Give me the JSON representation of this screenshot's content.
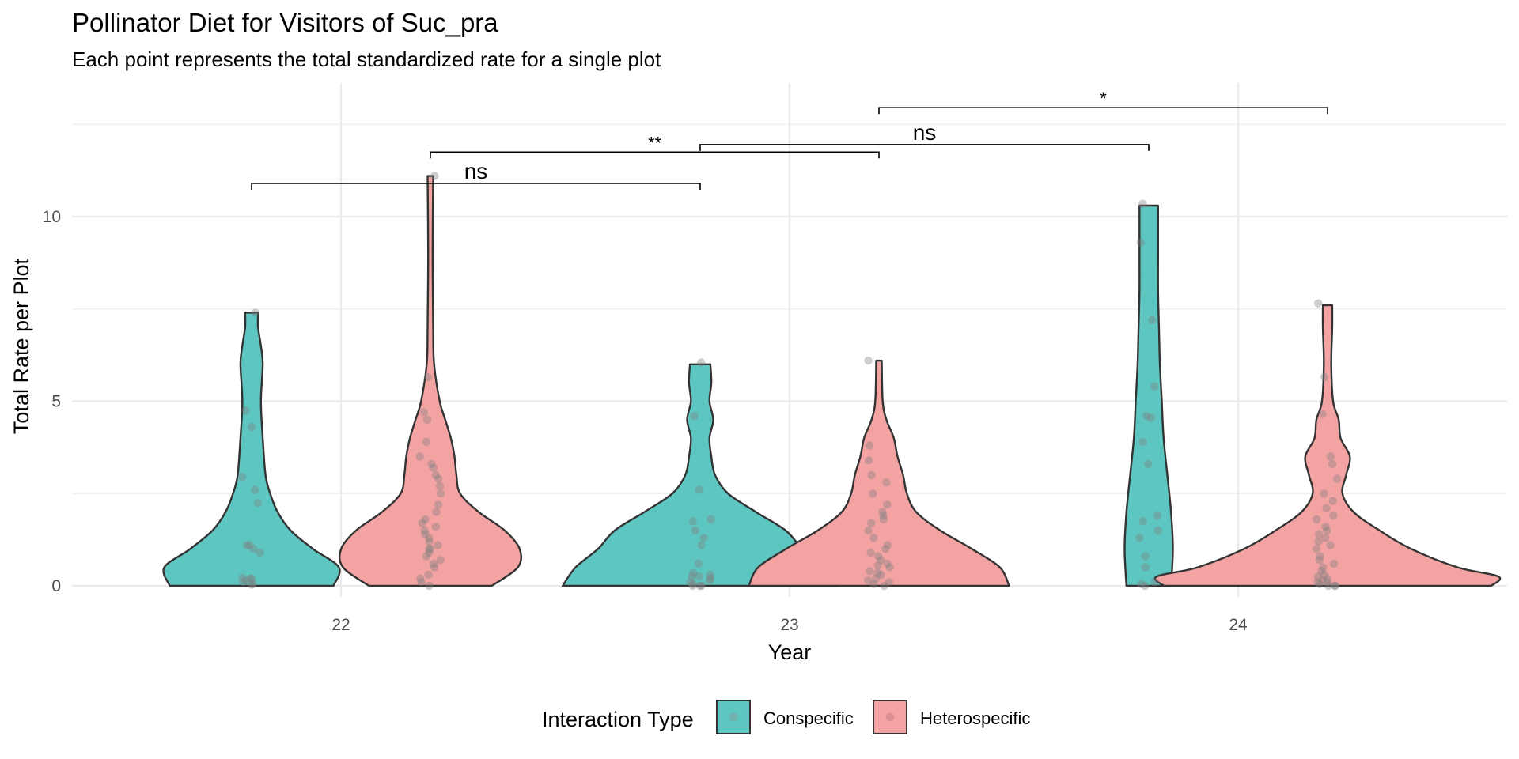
{
  "chart_data": {
    "type": "violin",
    "title": "Pollinator Diet for Visitors of Suc_pra",
    "subtitle": "Each point represents the total standardized rate for a single plot",
    "xlabel": "Year",
    "ylabel": "Total Rate per Plot",
    "categories": [
      "22",
      "23",
      "24"
    ],
    "yticks": [
      0,
      5,
      10
    ],
    "ylim": [
      -0.5,
      12.9
    ],
    "grid": true,
    "legend": {
      "title": "Interaction Type",
      "placement": "bottom",
      "entries": [
        {
          "label": "Conspecific",
          "color": "#5ec6c1"
        },
        {
          "label": "Heterospecific",
          "color": "#f4a3a3"
        }
      ]
    },
    "series": [
      {
        "name": "Conspecific",
        "color": "#5ec6c1",
        "groups": [
          {
            "x": "22",
            "max": 7.4,
            "profile": [
              [
                0,
                0.44
              ],
              [
                0.5,
                0.47
              ],
              [
                1.0,
                0.33
              ],
              [
                1.5,
                0.21
              ],
              [
                2.0,
                0.14
              ],
              [
                2.5,
                0.1
              ],
              [
                3.0,
                0.075
              ],
              [
                4.0,
                0.06
              ],
              [
                5.0,
                0.05
              ],
              [
                6.0,
                0.06
              ],
              [
                6.5,
                0.05
              ],
              [
                7.0,
                0.035
              ],
              [
                7.4,
                0.035
              ]
            ],
            "points": [
              0.03,
              0.05,
              0.1,
              0.15,
              0.2,
              0.2,
              0.22,
              0.9,
              1.0,
              1.1,
              1.1,
              2.25,
              2.6,
              2.95,
              4.3,
              4.75,
              7.4
            ]
          },
          {
            "x": "23",
            "max": 6.0,
            "profile": [
              [
                0,
                0.74
              ],
              [
                0.5,
                0.67
              ],
              [
                1.0,
                0.55
              ],
              [
                1.5,
                0.46
              ],
              [
                2.0,
                0.3
              ],
              [
                2.5,
                0.15
              ],
              [
                3.0,
                0.08
              ],
              [
                3.5,
                0.06
              ],
              [
                4.0,
                0.05
              ],
              [
                4.5,
                0.07
              ],
              [
                5.0,
                0.05
              ],
              [
                5.5,
                0.06
              ],
              [
                6.0,
                0.055
              ]
            ],
            "points": [
              0,
              0,
              0,
              0.05,
              0.1,
              0.15,
              0.2,
              0.25,
              0.25,
              0.3,
              0.35,
              0.6,
              1.1,
              1.3,
              1.5,
              1.75,
              1.8,
              2.6,
              4.6,
              6.05
            ]
          },
          {
            "x": "24",
            "max": 10.3,
            "profile": [
              [
                0,
                0.12
              ],
              [
                1.0,
                0.13
              ],
              [
                2.0,
                0.12
              ],
              [
                3.0,
                0.1
              ],
              [
                4.0,
                0.08
              ],
              [
                5.0,
                0.07
              ],
              [
                6.0,
                0.06
              ],
              [
                7.0,
                0.055
              ],
              [
                8.0,
                0.05
              ],
              [
                9.0,
                0.05
              ],
              [
                10.3,
                0.05
              ]
            ],
            "points": [
              0,
              0.05,
              0.1,
              0.5,
              0.8,
              1.3,
              1.5,
              1.75,
              1.9,
              3.3,
              3.9,
              4.55,
              4.6,
              5.4,
              7.2,
              9.3,
              10.35
            ]
          }
        ]
      },
      {
        "name": "Heterospecific",
        "color": "#f4a3a3",
        "groups": [
          {
            "x": "22",
            "max": 11.1,
            "profile": [
              [
                0,
                0.33
              ],
              [
                0.5,
                0.47
              ],
              [
                1.0,
                0.48
              ],
              [
                1.5,
                0.4
              ],
              [
                2.0,
                0.26
              ],
              [
                2.5,
                0.16
              ],
              [
                3.0,
                0.14
              ],
              [
                3.5,
                0.13
              ],
              [
                4.0,
                0.11
              ],
              [
                4.5,
                0.08
              ],
              [
                5.0,
                0.05
              ],
              [
                6.0,
                0.02
              ],
              [
                7.0,
                0.015
              ],
              [
                9.0,
                0.012
              ],
              [
                11.1,
                0.015
              ]
            ],
            "points": [
              0,
              0.1,
              0.2,
              0.3,
              0.5,
              0.6,
              0.7,
              0.8,
              0.9,
              1.0,
              1.0,
              1.1,
              1.2,
              1.3,
              1.4,
              1.5,
              1.6,
              1.7,
              1.8,
              2.0,
              2.2,
              2.5,
              2.7,
              2.9,
              3.0,
              3.2,
              3.3,
              3.5,
              3.9,
              4.5,
              4.7,
              5.65,
              11.1
            ]
          },
          {
            "x": "23",
            "max": 6.1,
            "profile": [
              [
                0,
                0.7
              ],
              [
                0.5,
                0.65
              ],
              [
                1.0,
                0.5
              ],
              [
                1.5,
                0.33
              ],
              [
                2.0,
                0.2
              ],
              [
                2.5,
                0.15
              ],
              [
                3.0,
                0.13
              ],
              [
                3.5,
                0.1
              ],
              [
                4.0,
                0.08
              ],
              [
                4.5,
                0.04
              ],
              [
                5.0,
                0.02
              ],
              [
                6.1,
                0.015
              ]
            ],
            "points": [
              0,
              0.05,
              0.1,
              0.15,
              0.2,
              0.3,
              0.35,
              0.4,
              0.5,
              0.55,
              0.6,
              0.7,
              0.8,
              0.9,
              1.0,
              1.1,
              1.3,
              1.5,
              1.7,
              1.8,
              1.9,
              2.0,
              2.2,
              2.5,
              2.8,
              3.0,
              3.4,
              3.8,
              6.1
            ]
          },
          {
            "x": "24",
            "max": 7.6,
            "profile": [
              [
                0,
                0.88
              ],
              [
                0.25,
                0.92
              ],
              [
                0.5,
                0.7
              ],
              [
                1.0,
                0.45
              ],
              [
                1.5,
                0.28
              ],
              [
                2.0,
                0.14
              ],
              [
                2.5,
                0.08
              ],
              [
                3.0,
                0.1
              ],
              [
                3.5,
                0.12
              ],
              [
                4.0,
                0.07
              ],
              [
                4.5,
                0.06
              ],
              [
                5.0,
                0.03
              ],
              [
                6.0,
                0.02
              ],
              [
                7.0,
                0.025
              ],
              [
                7.6,
                0.025
              ]
            ],
            "points": [
              0,
              0,
              0,
              0.05,
              0.1,
              0.1,
              0.15,
              0.2,
              0.25,
              0.3,
              0.4,
              0.5,
              0.6,
              0.7,
              0.8,
              1.0,
              1.1,
              1.2,
              1.3,
              1.4,
              1.5,
              1.6,
              1.8,
              1.9,
              2.1,
              2.3,
              2.5,
              2.9,
              3.3,
              3.5,
              4.65,
              5.65,
              7.65
            ]
          }
        ]
      }
    ],
    "significance": [
      {
        "label": "ns",
        "from": [
          "Conspecific",
          "22"
        ],
        "to": [
          "Conspecific",
          "23"
        ],
        "y": 10.9
      },
      {
        "label": "**",
        "from": [
          "Heterospecific",
          "22"
        ],
        "to": [
          "Heterospecific",
          "23"
        ],
        "y": 11.75
      },
      {
        "label": "ns",
        "from": [
          "Conspecific",
          "23"
        ],
        "to": [
          "Conspecific",
          "24"
        ],
        "y": 11.95
      },
      {
        "label": "*",
        "from": [
          "Heterospecific",
          "23"
        ],
        "to": [
          "Heterospecific",
          "24"
        ],
        "y": 12.95
      }
    ]
  }
}
